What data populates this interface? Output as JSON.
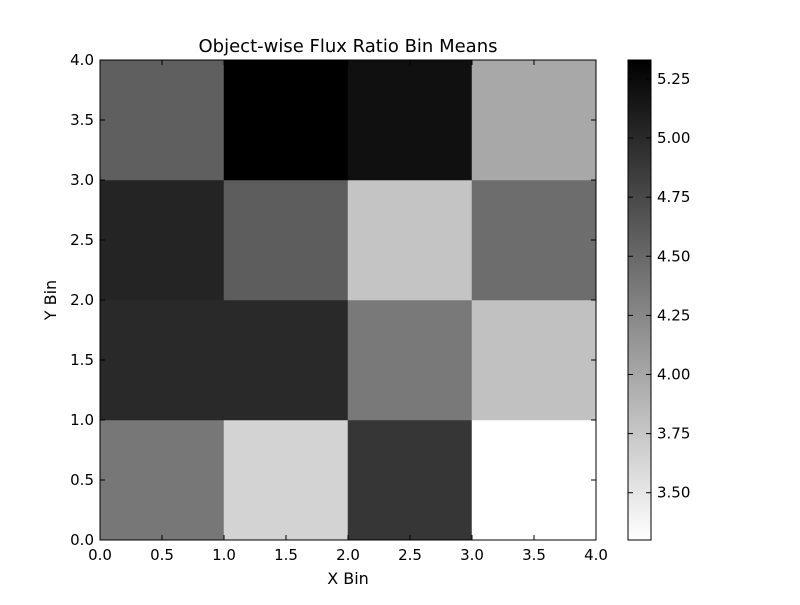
{
  "chart_data": {
    "type": "heatmap",
    "title": "Object-wise Flux Ratio Bin Means",
    "xlabel": "X Bin",
    "ylabel": "Y Bin",
    "xlim": [
      0,
      4
    ],
    "ylim": [
      0,
      4
    ],
    "x_bins": [
      0,
      1,
      2,
      3,
      4
    ],
    "y_bins": [
      0,
      1,
      2,
      3,
      4
    ],
    "xticks": [
      "0.0",
      "0.5",
      "1.0",
      "1.5",
      "2.0",
      "2.5",
      "3.0",
      "3.5",
      "4.0"
    ],
    "yticks": [
      "0.0",
      "0.5",
      "1.0",
      "1.5",
      "2.0",
      "2.5",
      "3.0",
      "3.5",
      "4.0"
    ],
    "colormap": "gray_r",
    "color_low": "#ffffff",
    "color_high": "#000000",
    "colorbar_range": [
      3.3,
      5.33
    ],
    "colorbar_ticks": [
      "3.50",
      "3.75",
      "4.00",
      "4.25",
      "4.50",
      "4.75",
      "5.00",
      "5.25"
    ],
    "colorbar_tick_values": [
      3.5,
      3.75,
      4.0,
      4.25,
      4.5,
      4.75,
      5.0,
      5.25
    ],
    "values": [
      [
        4.38,
        3.65,
        4.9,
        3.3
      ],
      [
        5.0,
        5.0,
        4.37,
        3.79
      ],
      [
        5.04,
        4.59,
        3.77,
        4.46
      ],
      [
        4.57,
        5.33,
        5.2,
        3.99
      ]
    ],
    "grid": false,
    "legend": "colorbar-right"
  }
}
